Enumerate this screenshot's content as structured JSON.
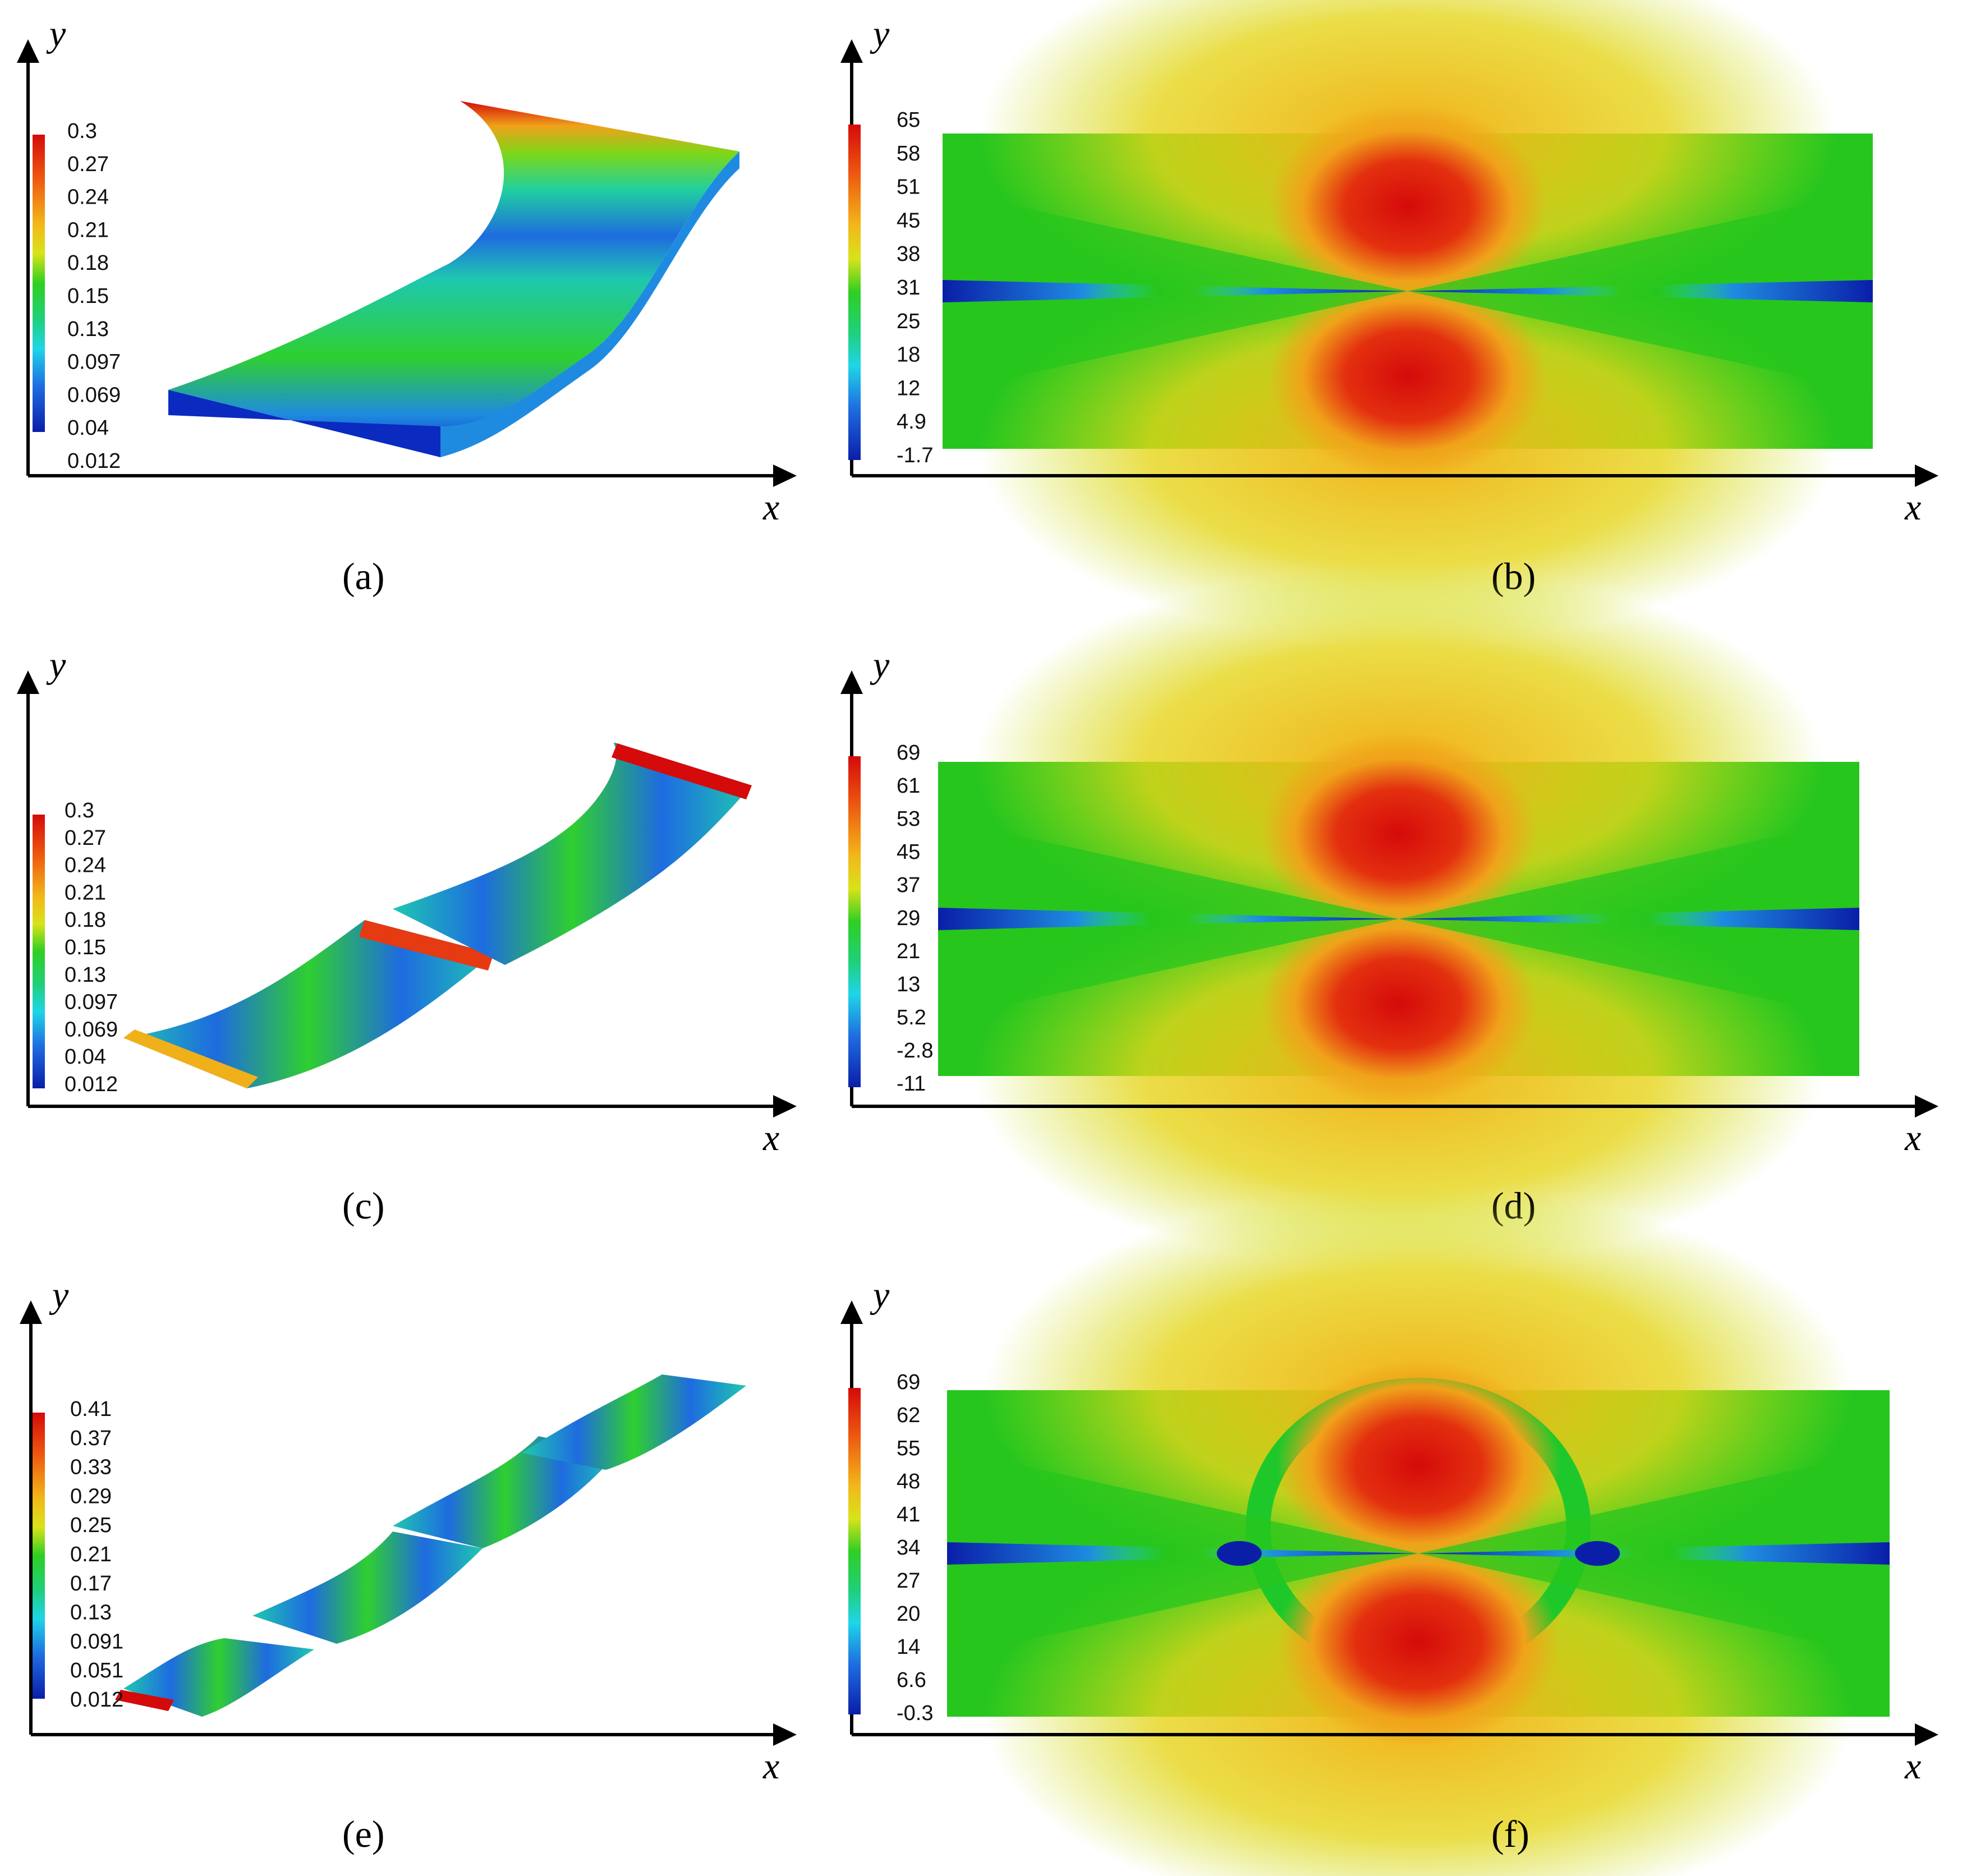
{
  "axis_labels": {
    "x": "x",
    "y": "y"
  },
  "colormap": [
    "#0a1ea8",
    "#1e6be0",
    "#1fd5e8",
    "#1fd23a",
    "#27c61e",
    "#d8e41a",
    "#f0a71a",
    "#e53a12",
    "#d50a0a"
  ],
  "panels": [
    {
      "id": "a",
      "caption": "(a)",
      "kind": "strip-3d",
      "legend": [
        "0.3",
        "0.27",
        "0.24",
        "0.21",
        "0.18",
        "0.15",
        "0.13",
        "0.097",
        "0.069",
        "0.04",
        "0.012"
      ]
    },
    {
      "id": "b",
      "caption": "(b)",
      "kind": "field-2d",
      "legend": [
        "65",
        "58",
        "51",
        "45",
        "38",
        "31",
        "25",
        "18",
        "12",
        "4.9",
        "-1.7"
      ]
    },
    {
      "id": "c",
      "caption": "(c)",
      "kind": "strip-3d",
      "legend": [
        "0.3",
        "0.27",
        "0.24",
        "0.21",
        "0.18",
        "0.15",
        "0.13",
        "0.097",
        "0.069",
        "0.04",
        "0.012"
      ]
    },
    {
      "id": "d",
      "caption": "(d)",
      "kind": "field-2d",
      "legend": [
        "69",
        "61",
        "53",
        "45",
        "37",
        "29",
        "21",
        "13",
        "5.2",
        "-2.8",
        "-11"
      ]
    },
    {
      "id": "e",
      "caption": "(e)",
      "kind": "strip-3d",
      "legend": [
        "0.41",
        "0.37",
        "0.33",
        "0.29",
        "0.25",
        "0.21",
        "0.17",
        "0.13",
        "0.091",
        "0.051",
        "0.012"
      ]
    },
    {
      "id": "f",
      "caption": "(f)",
      "kind": "field-2d",
      "legend": [
        "69",
        "62",
        "55",
        "48",
        "41",
        "34",
        "27",
        "20",
        "14",
        "6.6",
        "-0.3"
      ]
    }
  ]
}
